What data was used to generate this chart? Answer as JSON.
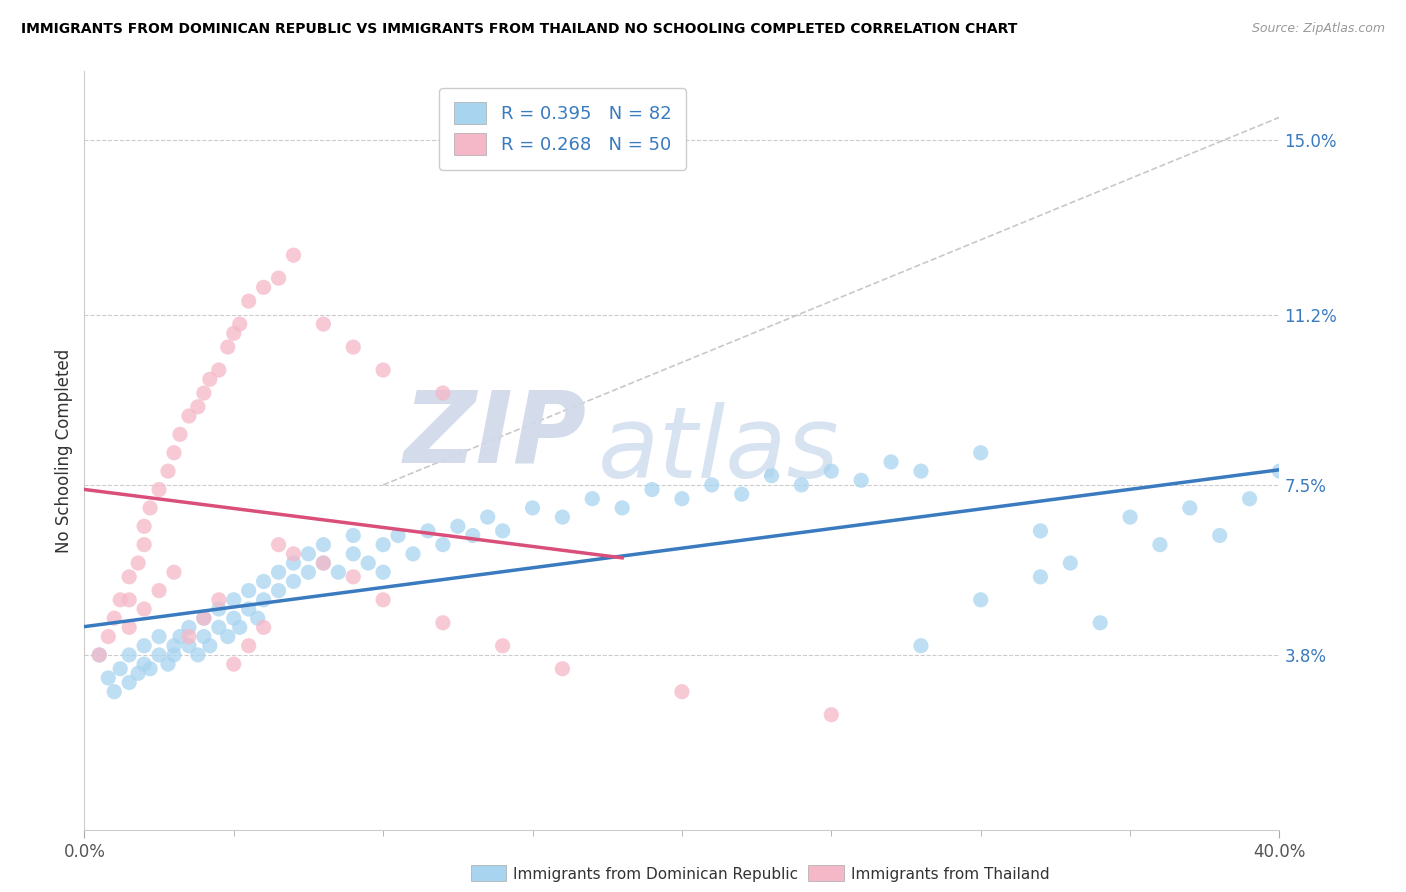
{
  "title": "IMMIGRANTS FROM DOMINICAN REPUBLIC VS IMMIGRANTS FROM THAILAND NO SCHOOLING COMPLETED CORRELATION CHART",
  "source": "Source: ZipAtlas.com",
  "ylabel": "No Schooling Completed",
  "ytick_labels": [
    "15.0%",
    "11.2%",
    "7.5%",
    "3.8%"
  ],
  "ytick_values": [
    0.15,
    0.112,
    0.075,
    0.038
  ],
  "xlim": [
    0.0,
    0.4
  ],
  "ylim": [
    0.0,
    0.165
  ],
  "legend_entry1": "R = 0.395   N = 82",
  "legend_entry2": "R = 0.268   N = 50",
  "legend_label1": "Immigrants from Dominican Republic",
  "legend_label2": "Immigrants from Thailand",
  "color_blue": "#a8d4f0",
  "color_pink": "#f5b8c8",
  "line_color_blue": "#3a7abf",
  "line_color_pink": "#d94f7a",
  "watermark_zip": "ZIP",
  "watermark_atlas": "atlas",
  "blue_x": [
    0.005,
    0.008,
    0.01,
    0.012,
    0.015,
    0.015,
    0.018,
    0.02,
    0.02,
    0.022,
    0.025,
    0.025,
    0.028,
    0.03,
    0.03,
    0.032,
    0.035,
    0.035,
    0.038,
    0.04,
    0.04,
    0.042,
    0.045,
    0.045,
    0.048,
    0.05,
    0.05,
    0.052,
    0.055,
    0.055,
    0.058,
    0.06,
    0.06,
    0.065,
    0.065,
    0.07,
    0.07,
    0.075,
    0.075,
    0.08,
    0.08,
    0.085,
    0.09,
    0.09,
    0.095,
    0.1,
    0.1,
    0.105,
    0.11,
    0.115,
    0.12,
    0.125,
    0.13,
    0.135,
    0.14,
    0.15,
    0.16,
    0.17,
    0.18,
    0.19,
    0.2,
    0.21,
    0.22,
    0.23,
    0.24,
    0.25,
    0.26,
    0.27,
    0.28,
    0.3,
    0.32,
    0.33,
    0.35,
    0.36,
    0.37,
    0.38,
    0.39,
    0.4,
    0.3,
    0.28,
    0.32,
    0.34
  ],
  "blue_y": [
    0.038,
    0.033,
    0.03,
    0.035,
    0.032,
    0.038,
    0.034,
    0.036,
    0.04,
    0.035,
    0.038,
    0.042,
    0.036,
    0.04,
    0.038,
    0.042,
    0.04,
    0.044,
    0.038,
    0.042,
    0.046,
    0.04,
    0.044,
    0.048,
    0.042,
    0.046,
    0.05,
    0.044,
    0.048,
    0.052,
    0.046,
    0.05,
    0.054,
    0.052,
    0.056,
    0.054,
    0.058,
    0.056,
    0.06,
    0.058,
    0.062,
    0.056,
    0.06,
    0.064,
    0.058,
    0.062,
    0.056,
    0.064,
    0.06,
    0.065,
    0.062,
    0.066,
    0.064,
    0.068,
    0.065,
    0.07,
    0.068,
    0.072,
    0.07,
    0.074,
    0.072,
    0.075,
    0.073,
    0.077,
    0.075,
    0.078,
    0.076,
    0.08,
    0.078,
    0.082,
    0.065,
    0.058,
    0.068,
    0.062,
    0.07,
    0.064,
    0.072,
    0.078,
    0.05,
    0.04,
    0.055,
    0.045
  ],
  "pink_x": [
    0.005,
    0.008,
    0.01,
    0.012,
    0.015,
    0.015,
    0.018,
    0.02,
    0.02,
    0.022,
    0.025,
    0.028,
    0.03,
    0.032,
    0.035,
    0.038,
    0.04,
    0.042,
    0.045,
    0.048,
    0.05,
    0.052,
    0.055,
    0.06,
    0.065,
    0.07,
    0.08,
    0.09,
    0.1,
    0.12,
    0.015,
    0.02,
    0.025,
    0.03,
    0.035,
    0.04,
    0.045,
    0.05,
    0.055,
    0.06,
    0.065,
    0.07,
    0.08,
    0.09,
    0.1,
    0.12,
    0.14,
    0.16,
    0.2,
    0.25
  ],
  "pink_y": [
    0.038,
    0.042,
    0.046,
    0.05,
    0.05,
    0.055,
    0.058,
    0.062,
    0.066,
    0.07,
    0.074,
    0.078,
    0.082,
    0.086,
    0.09,
    0.092,
    0.095,
    0.098,
    0.1,
    0.105,
    0.108,
    0.11,
    0.115,
    0.118,
    0.12,
    0.125,
    0.11,
    0.105,
    0.1,
    0.095,
    0.044,
    0.048,
    0.052,
    0.056,
    0.042,
    0.046,
    0.05,
    0.036,
    0.04,
    0.044,
    0.062,
    0.06,
    0.058,
    0.055,
    0.05,
    0.045,
    0.04,
    0.035,
    0.03,
    0.025
  ]
}
